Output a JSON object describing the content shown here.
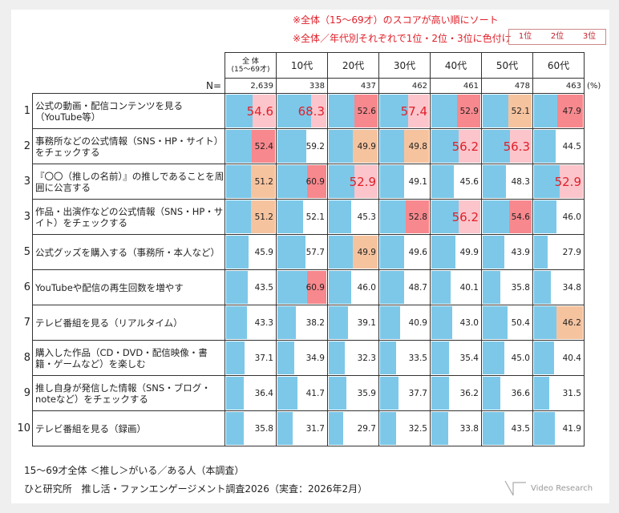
{
  "notes": [
    "※全体（15～69才）のスコアが高い順にソート",
    "※全体／年代別それぞれで1位・2位・3位に色付け"
  ],
  "legend": [
    {
      "label": "1位",
      "color": "#fbc5cb"
    },
    {
      "label": "2位",
      "color": "#f7888d"
    },
    {
      "label": "3位",
      "color": "#f6c39f"
    }
  ],
  "colors": {
    "bar": "#7dc8e8",
    "rank_text": "#e0202a"
  },
  "n_label": "N=",
  "unit": "(%)",
  "footer": [
    "15～69才全体 ＜推し＞がいる／ある人（本調査）",
    "ひと研究所　推し活・ファンエンゲージメント調査2026（実査：2026年2月）"
  ],
  "logo_text": "Video Research",
  "chart_data": {
    "type": "table",
    "value_scale": [
      0,
      100
    ],
    "columns": [
      {
        "label": "全 体",
        "sub": "(15～69才)",
        "n": "2,639"
      },
      {
        "label": "10代",
        "n": "338"
      },
      {
        "label": "20代",
        "n": "437"
      },
      {
        "label": "30代",
        "n": "462"
      },
      {
        "label": "40代",
        "n": "461"
      },
      {
        "label": "50代",
        "n": "478"
      },
      {
        "label": "60代",
        "n": "463"
      }
    ],
    "rows": [
      {
        "rank": "1",
        "label": "公式の動画・配信コンテンツを見る（YouTube等）",
        "values": [
          54.6,
          68.3,
          52.6,
          57.4,
          52.9,
          52.1,
          47.9
        ],
        "ranks": [
          1,
          1,
          2,
          1,
          2,
          3,
          2
        ]
      },
      {
        "rank": "2",
        "label": "事務所などの公式情報（SNS・HP・サイト）をチェックする",
        "values": [
          52.4,
          59.2,
          49.9,
          49.8,
          56.2,
          56.3,
          44.5
        ],
        "ranks": [
          2,
          0,
          3,
          3,
          1,
          1,
          0
        ]
      },
      {
        "rank": "3",
        "label": "『〇〇（推しの名前）』の推しであることを周囲に公言する",
        "values": [
          51.2,
          60.9,
          52.9,
          49.1,
          45.6,
          48.3,
          52.9
        ],
        "ranks": [
          3,
          2,
          1,
          0,
          0,
          0,
          1
        ]
      },
      {
        "rank": "3",
        "label": "作品・出演作などの公式情報（SNS・HP・サイト）をチェックする",
        "values": [
          51.2,
          52.1,
          45.3,
          52.8,
          56.2,
          54.6,
          46.0
        ],
        "ranks": [
          3,
          0,
          0,
          2,
          1,
          2,
          0
        ]
      },
      {
        "rank": "5",
        "label": "公式グッズを購入する（事務所・本人など）",
        "values": [
          45.9,
          57.7,
          49.9,
          49.6,
          49.9,
          43.9,
          27.9
        ],
        "ranks": [
          0,
          0,
          3,
          0,
          0,
          0,
          0
        ]
      },
      {
        "rank": "6",
        "label": "YouTubeや配信の再生回数を増やす",
        "values": [
          43.5,
          60.9,
          46.0,
          48.7,
          40.1,
          35.8,
          34.8
        ],
        "ranks": [
          0,
          2,
          0,
          0,
          0,
          0,
          0
        ]
      },
      {
        "rank": "7",
        "label": "テレビ番組を見る（リアルタイム）",
        "values": [
          43.3,
          38.2,
          39.1,
          40.9,
          43.0,
          50.4,
          46.2
        ],
        "ranks": [
          0,
          0,
          0,
          0,
          0,
          0,
          3
        ]
      },
      {
        "rank": "8",
        "label": "購入した作品（CD・DVD・配信映像・書籍・ゲームなど）を楽しむ",
        "values": [
          37.1,
          34.9,
          32.3,
          33.5,
          35.4,
          45.0,
          40.4
        ],
        "ranks": [
          0,
          0,
          0,
          0,
          0,
          0,
          0
        ]
      },
      {
        "rank": "9",
        "label": "推し自身が発信した情報（SNS・ブログ・noteなど）をチェックする",
        "values": [
          36.4,
          41.7,
          35.9,
          37.7,
          36.2,
          36.6,
          31.5
        ],
        "ranks": [
          0,
          0,
          0,
          0,
          0,
          0,
          0
        ]
      },
      {
        "rank": "10",
        "label": "テレビ番組を見る（録画）",
        "values": [
          35.8,
          31.7,
          29.7,
          32.5,
          33.8,
          43.5,
          41.9
        ],
        "ranks": [
          0,
          0,
          0,
          0,
          0,
          0,
          0
        ]
      }
    ]
  }
}
